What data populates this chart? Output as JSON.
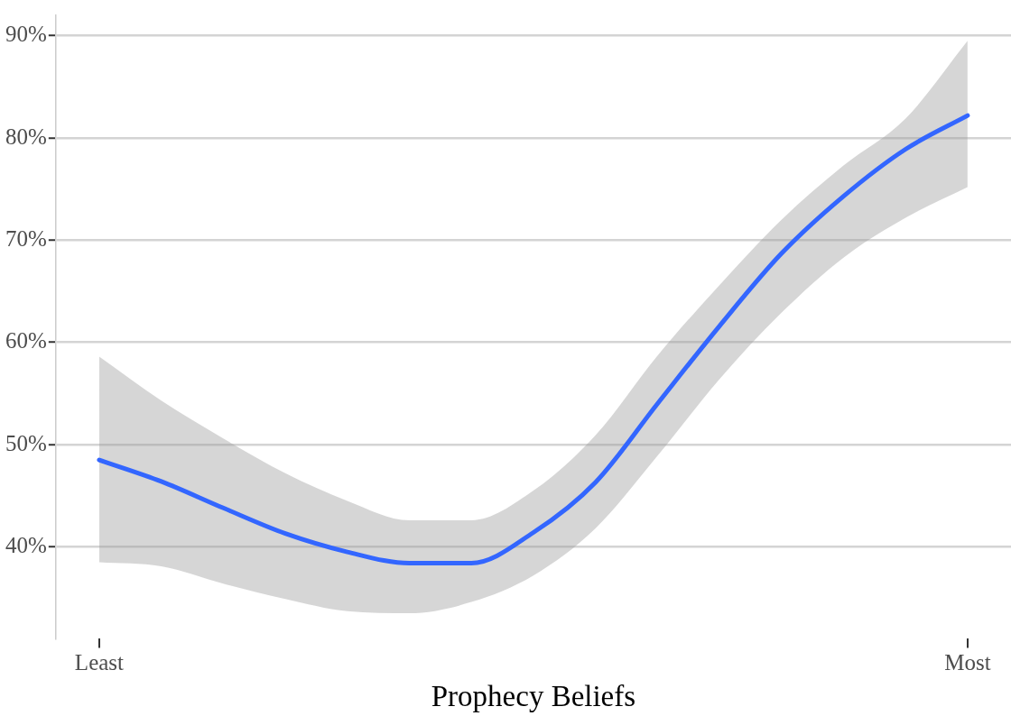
{
  "chart_data": {
    "type": "line",
    "xlabel": "Prophecy Beliefs",
    "categories": [
      "Least",
      null,
      null,
      null,
      null,
      null,
      null,
      null,
      null,
      null,
      null,
      null,
      null,
      null,
      "Most"
    ],
    "series": [
      {
        "color": "#3366ff",
        "values": [
          48.5,
          46.4,
          43.8,
          41.3,
          39.5,
          38.4,
          38.4,
          41.4,
          46.3,
          54.0,
          61.6,
          68.7,
          74.3,
          78.9,
          82.2
        ],
        "lower": [
          38.5,
          38.1,
          36.4,
          34.9,
          33.7,
          33.5,
          34.6,
          37.2,
          41.8,
          48.9,
          56.4,
          62.9,
          68.3,
          72.2,
          75.2
        ],
        "upper": [
          58.6,
          54.3,
          50.6,
          47.2,
          44.5,
          42.6,
          42.6,
          45.5,
          50.9,
          58.7,
          65.6,
          72.0,
          77.3,
          81.9,
          89.5
        ]
      }
    ],
    "ylim": [
      31,
      92
    ],
    "yticks": [
      {
        "value": 40,
        "label": "40%"
      },
      {
        "value": 50,
        "label": "50%"
      },
      {
        "value": 60,
        "label": "60%"
      },
      {
        "value": 70,
        "label": "70%"
      },
      {
        "value": 80,
        "label": "80%"
      },
      {
        "value": 90,
        "label": "90%"
      }
    ],
    "grid": "y",
    "legend": false,
    "marker": "none",
    "line_style": "solid"
  }
}
